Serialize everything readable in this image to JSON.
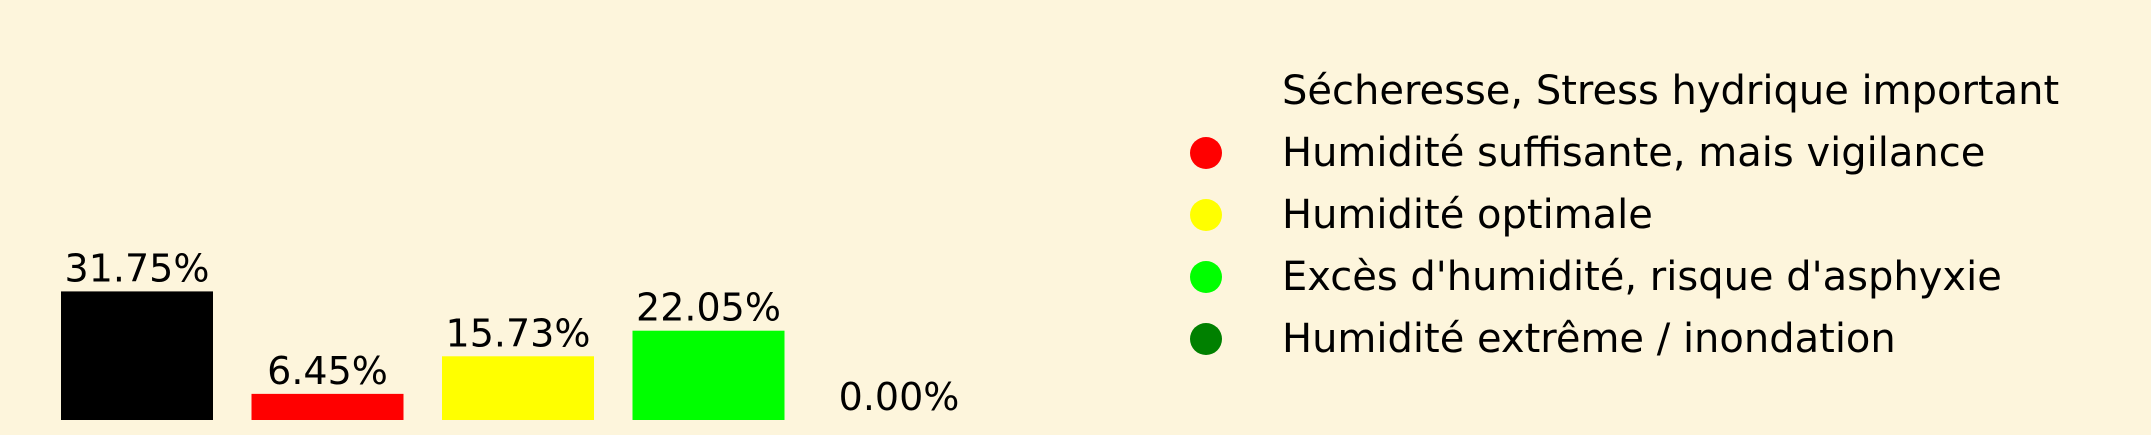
{
  "chart_data": {
    "type": "bar",
    "categories": [
      "Sécheresse, Stress hydrique important",
      "Humidité suffisante, mais vigilance",
      "Humidité optimale",
      "Excès d'humidité, risque d'asphyxie",
      "Humidité extrême / inondation"
    ],
    "values": [
      31.75,
      6.45,
      15.73,
      22.05,
      0.0
    ],
    "data_labels": [
      "31.75%",
      "6.45%",
      "15.73%",
      "22.05%",
      "0.00%"
    ],
    "colors": [
      "#000000",
      "#ff0000",
      "#ffff00",
      "#00ff00",
      "#008000"
    ],
    "title": "",
    "xlabel": "",
    "ylabel": "",
    "ylim": [
      0,
      100
    ],
    "grid": false,
    "axes_visible": false,
    "legend_placement": "right",
    "background": "#fdf5dc"
  }
}
